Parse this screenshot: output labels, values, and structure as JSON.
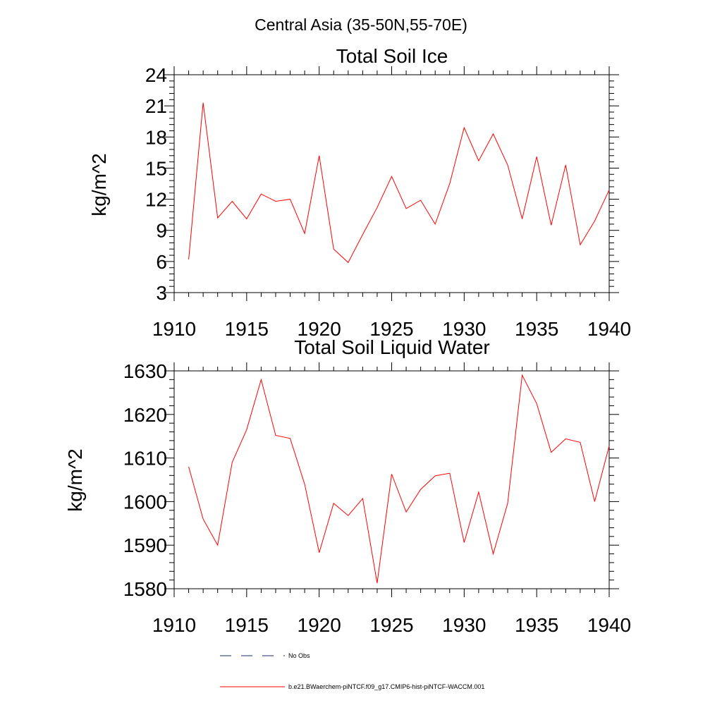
{
  "figure": {
    "title": "Central Asia (35-50N,55-70E)"
  },
  "legend": {
    "position": "bottom",
    "items": [
      {
        "label": "No Obs",
        "color": "#1f2a6b",
        "style": "dashed"
      },
      {
        "label": "b.e21.BWaerchem-piNTCF.f09_g17.CMIP6-hist-piNTCF-WACCM.001",
        "color": "#ff0000",
        "style": "solid"
      }
    ]
  },
  "chart_data": [
    {
      "type": "line",
      "title": "Total Soil Ice",
      "xlabel": "",
      "ylabel": "kg/m^2",
      "xlim": [
        1910,
        1940
      ],
      "ylim": [
        3,
        24
      ],
      "xticks": [
        1910,
        1915,
        1920,
        1925,
        1930,
        1935,
        1940
      ],
      "yticks": [
        3,
        6,
        9,
        12,
        15,
        18,
        21,
        24
      ],
      "grid": false,
      "series": [
        {
          "name": "b.e21.BWaerchem-piNTCF.f09_g17.CMIP6-hist-piNTCF-WACCM.001",
          "color": "#ff0000",
          "x": [
            1911,
            1912,
            1913,
            1914,
            1915,
            1916,
            1917,
            1918,
            1919,
            1920,
            1921,
            1922,
            1923,
            1924,
            1925,
            1926,
            1927,
            1928,
            1929,
            1930,
            1931,
            1932,
            1933,
            1934,
            1935,
            1936,
            1937,
            1938,
            1939,
            1940
          ],
          "y": [
            6.2,
            21.3,
            10.2,
            11.8,
            10.1,
            12.5,
            11.8,
            12.0,
            8.7,
            16.2,
            7.2,
            5.9,
            8.6,
            11.2,
            14.2,
            11.1,
            11.9,
            9.6,
            13.5,
            18.9,
            15.7,
            18.3,
            15.3,
            10.1,
            16.1,
            9.5,
            15.3,
            7.6,
            9.9,
            12.9
          ]
        }
      ]
    },
    {
      "type": "line",
      "title": "Total Soil Liquid Water",
      "xlabel": "",
      "ylabel": "kg/m^2",
      "xlim": [
        1910,
        1940
      ],
      "ylim": [
        1580,
        1630
      ],
      "xticks": [
        1910,
        1915,
        1920,
        1925,
        1930,
        1935,
        1940
      ],
      "yticks": [
        1580,
        1590,
        1600,
        1610,
        1620,
        1630
      ],
      "grid": false,
      "series": [
        {
          "name": "b.e21.BWaerchem-piNTCF.f09_g17.CMIP6-hist-piNTCF-WACCM.001",
          "color": "#ff0000",
          "x": [
            1911,
            1912,
            1913,
            1914,
            1915,
            1916,
            1917,
            1918,
            1919,
            1920,
            1921,
            1922,
            1923,
            1924,
            1925,
            1926,
            1927,
            1928,
            1929,
            1930,
            1931,
            1932,
            1933,
            1934,
            1935,
            1936,
            1937,
            1938,
            1939,
            1940
          ],
          "y": [
            1608.0,
            1596.0,
            1590.0,
            1609.0,
            1616.5,
            1628.0,
            1615.2,
            1614.5,
            1604.0,
            1588.3,
            1599.6,
            1596.8,
            1600.7,
            1581.3,
            1606.3,
            1597.6,
            1602.8,
            1605.9,
            1606.5,
            1590.6,
            1602.2,
            1588.0,
            1599.6,
            1629.0,
            1622.5,
            1611.3,
            1614.4,
            1613.6,
            1600.0,
            1612.8
          ]
        }
      ]
    }
  ]
}
